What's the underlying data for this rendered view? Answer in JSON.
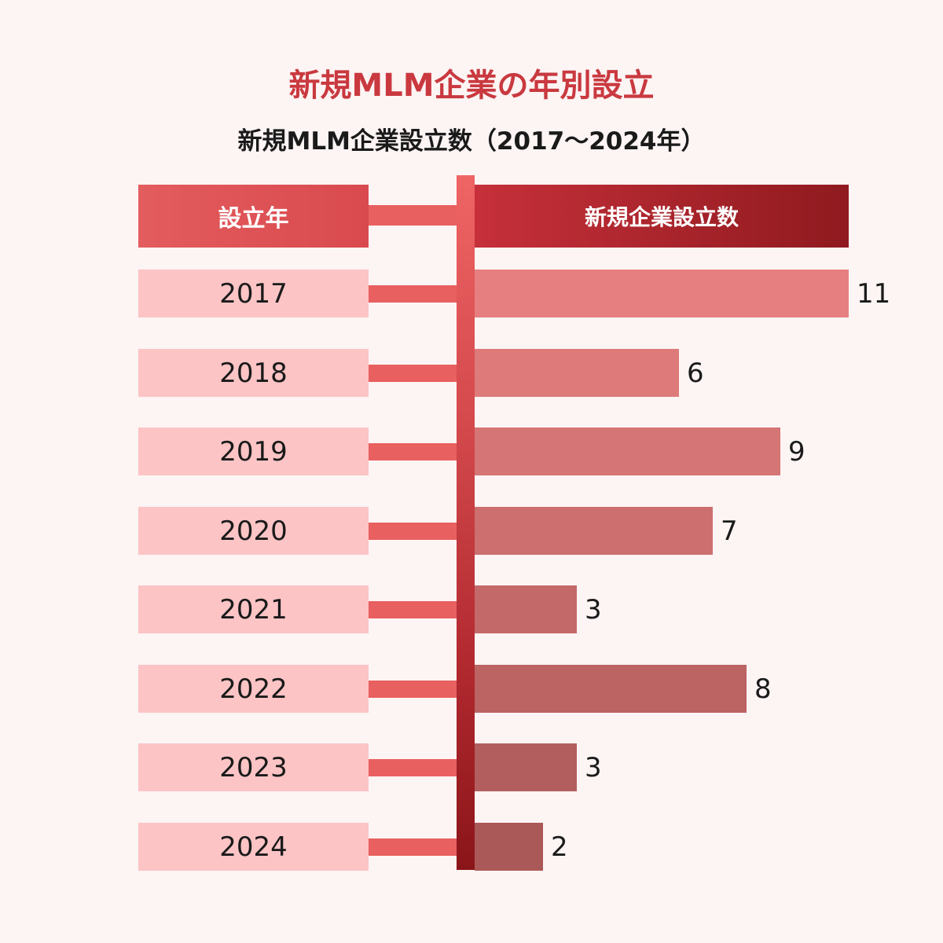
{
  "chart_data": {
    "type": "bar",
    "orientation": "horizontal",
    "title": "新規MLM企業の年別設立",
    "subtitle": "新規MLM企業設立数（2017〜2024年）",
    "category_header": "設立年",
    "value_header": "新規企業設立数",
    "categories": [
      "2017",
      "2018",
      "2019",
      "2020",
      "2021",
      "2022",
      "2023",
      "2024"
    ],
    "values": [
      11,
      6,
      9,
      7,
      3,
      8,
      3,
      2
    ],
    "xlim": [
      0,
      11
    ],
    "grid": false,
    "legend": "none",
    "colors": {
      "title": "#c9393f",
      "bar_start": "#e68080",
      "bar_end": "#ab5858",
      "year_box": "#fcc4c5",
      "connector": "#e8605f"
    }
  }
}
